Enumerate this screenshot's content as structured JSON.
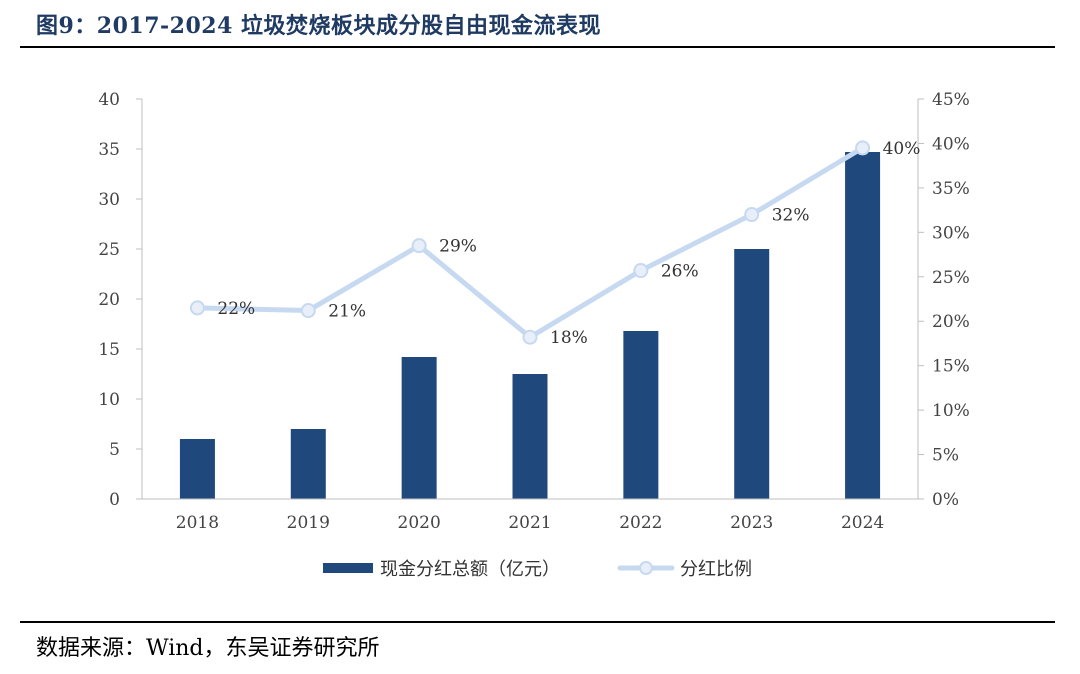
{
  "figure": {
    "title": "图9：2017-2024 垃圾焚烧板块成分股自由现金流表现",
    "source": "数据来源：Wind，东吴证券研究所"
  },
  "colors": {
    "bar": "#1f497d",
    "line": "#c6d9f1",
    "axis": "#bfbfbf",
    "rule": "#000000"
  },
  "chart_data": {
    "type": "bar+line",
    "categories": [
      "2018",
      "2019",
      "2020",
      "2021",
      "2022",
      "2023",
      "2024"
    ],
    "series": [
      {
        "name": "现金分红总额（亿元）",
        "type": "bar",
        "axis": "left",
        "values": [
          6.0,
          7.0,
          14.2,
          12.5,
          16.8,
          25.0,
          34.7
        ]
      },
      {
        "name": "分红比例",
        "type": "line",
        "axis": "right",
        "values": [
          21.5,
          21.2,
          28.5,
          18.2,
          25.7,
          32.0,
          39.5
        ],
        "labels": [
          "22%",
          "21%",
          "29%",
          "18%",
          "26%",
          "32%",
          "40%"
        ]
      }
    ],
    "left_axis": {
      "min": 0,
      "max": 40,
      "ticks": [
        "0",
        "5",
        "10",
        "15",
        "20",
        "25",
        "30",
        "35",
        "40"
      ]
    },
    "right_axis": {
      "min": 0,
      "max": 45,
      "ticks": [
        "0%",
        "5%",
        "10%",
        "15%",
        "20%",
        "25%",
        "30%",
        "35%",
        "40%",
        "45%"
      ]
    },
    "legend": [
      "现金分红总额（亿元）",
      "分红比例"
    ],
    "legend_position": "bottom",
    "grid": false
  }
}
